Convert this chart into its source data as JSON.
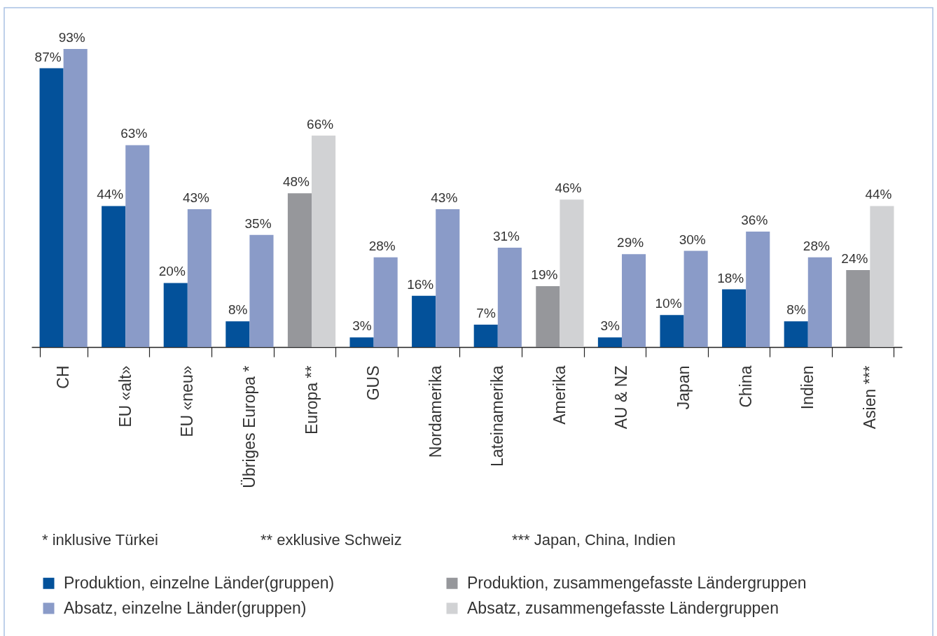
{
  "chart_data": {
    "type": "bar",
    "categories": [
      "CH",
      "EU «alt»",
      "EU «neu»",
      "Übriges Europa *",
      "Europa **",
      "GUS",
      "Nordamerika",
      "Lateinamerika",
      "Amerika",
      "AU & NZ",
      "Japan",
      "China",
      "Indien",
      "Asien ***"
    ],
    "series": [
      {
        "name": "Produktion, einzelne Länder(gruppen)",
        "color": "#03519a",
        "values": [
          87,
          44,
          20,
          8,
          null,
          3,
          16,
          7,
          null,
          3,
          10,
          18,
          8,
          null
        ],
        "value_labels": [
          "87%",
          "44%",
          "20%",
          "8%",
          null,
          "3%",
          "16%",
          "7%",
          null,
          "3%",
          "10%",
          "18%",
          "8%",
          null
        ]
      },
      {
        "name": "Absatz, einzelne Länder(gruppen)",
        "color": "#8a9bc8",
        "values": [
          93,
          63,
          43,
          35,
          null,
          28,
          43,
          31,
          null,
          29,
          30,
          36,
          28,
          null
        ],
        "value_labels": [
          "93%",
          "63%",
          "43%",
          "35%",
          null,
          "28%",
          "43%",
          "31%",
          null,
          "29%",
          "30%",
          "36%",
          "28%",
          null
        ]
      },
      {
        "name": "Produktion, zusammengefasste Ländergruppen",
        "color": "#96979b",
        "values": [
          null,
          null,
          null,
          null,
          48,
          null,
          null,
          null,
          19,
          null,
          null,
          null,
          null,
          24
        ],
        "value_labels": [
          null,
          null,
          null,
          null,
          "48%",
          null,
          null,
          null,
          "19%",
          null,
          null,
          null,
          null,
          "24%"
        ]
      },
      {
        "name": "Absatz, zusammengefasste Ländergruppen",
        "color": "#d1d2d4",
        "values": [
          null,
          null,
          null,
          null,
          66,
          null,
          null,
          null,
          46,
          null,
          null,
          null,
          null,
          44
        ],
        "value_labels": [
          null,
          null,
          null,
          null,
          "66%",
          null,
          null,
          null,
          "46%",
          null,
          null,
          null,
          null,
          "44%"
        ]
      }
    ],
    "tick_labels": "x",
    "legend": "bottom",
    "annotations": [
      "* inklusive Türkei",
      "** exklusive Schweiz",
      "*** Japan, China, Indien"
    ]
  }
}
